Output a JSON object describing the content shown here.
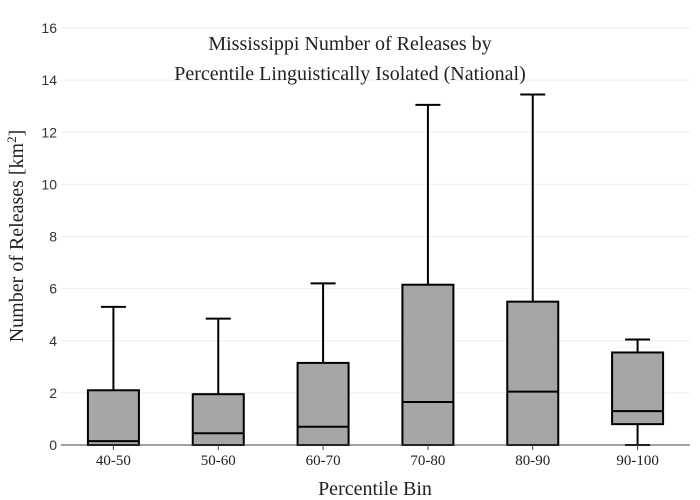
{
  "chart_data": {
    "type": "box",
    "title_lines": [
      "Mississippi Number of Releases by",
      "Percentile Linguistically Isolated (National)"
    ],
    "xlabel": "Percentile Bin",
    "ylabel_main": "Number of Releases  [km",
    "ylabel_sup": "2",
    "ylabel_end": "]",
    "ylim": [
      0,
      16
    ],
    "yticks": [
      0,
      2,
      4,
      6,
      8,
      10,
      12,
      14,
      16
    ],
    "ytick_labels": [
      "0",
      "2",
      "4",
      "6",
      "8",
      "10",
      "12",
      "14",
      "16"
    ],
    "grid": true,
    "categories": [
      "40-50",
      "50-60",
      "60-70",
      "70-80",
      "80-90",
      "90-100"
    ],
    "boxes": [
      {
        "min": 0,
        "q1": 0,
        "median": 0.15,
        "q3": 2.1,
        "max": 5.3
      },
      {
        "min": 0,
        "q1": 0,
        "median": 0.45,
        "q3": 1.95,
        "max": 4.85
      },
      {
        "min": 0,
        "q1": 0,
        "median": 0.7,
        "q3": 3.15,
        "max": 6.2
      },
      {
        "min": 0,
        "q1": 0,
        "median": 1.65,
        "q3": 6.15,
        "max": 13.05
      },
      {
        "min": 0,
        "q1": 0,
        "median": 2.05,
        "q3": 5.5,
        "max": 13.45
      },
      {
        "min": 0,
        "q1": 0.8,
        "median": 1.3,
        "q3": 3.55,
        "max": 4.05
      }
    ],
    "box_color": "#a6a6a6"
  }
}
